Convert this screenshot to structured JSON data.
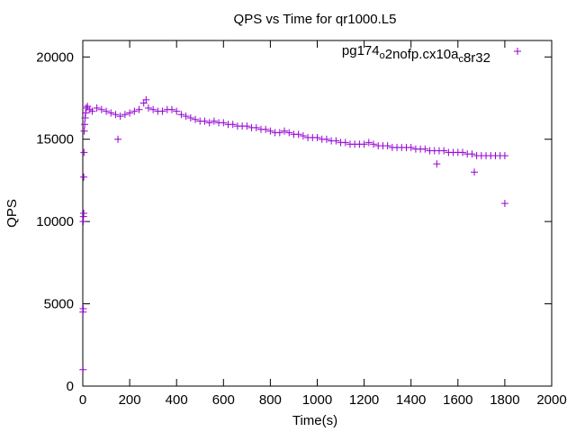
{
  "chart_data": {
    "type": "scatter",
    "title": "QPS vs Time for qr1000.L5",
    "xlabel": "Time(s)",
    "ylabel": "QPS",
    "xlim": [
      0,
      2000
    ],
    "ylim": [
      0,
      21000
    ],
    "xticks": [
      0,
      200,
      400,
      600,
      800,
      1000,
      1200,
      1400,
      1600,
      1800,
      2000
    ],
    "yticks": [
      0,
      5000,
      10000,
      15000,
      20000
    ],
    "xtick_labels": [
      "0",
      "200",
      "400",
      "600",
      "800",
      "1000",
      "1200",
      "1400",
      "1600",
      "1800",
      "2000"
    ],
    "ytick_labels": [
      "0",
      "5000",
      "10000",
      "15000",
      "20000"
    ],
    "grid": false,
    "legend_position": "top-right",
    "marker": "plus",
    "color": "#9400d3",
    "series": [
      {
        "name": "pg174_o2nofp.cx10a_c8r32",
        "name_parts": [
          {
            "text": "pg174",
            "sub": false
          },
          {
            "text": "o",
            "sub": true
          },
          {
            "text": "2nofp.cx10a",
            "sub": false
          },
          {
            "text": "c",
            "sub": true
          },
          {
            "text": "8r32",
            "sub": false
          }
        ],
        "x": [
          1,
          1,
          2,
          2,
          3,
          4,
          4,
          5,
          6,
          8,
          10,
          12,
          15,
          20,
          30,
          40,
          60,
          80,
          100,
          120,
          140,
          150,
          160,
          180,
          200,
          220,
          240,
          260,
          270,
          280,
          300,
          320,
          340,
          360,
          380,
          400,
          420,
          440,
          460,
          480,
          500,
          520,
          540,
          560,
          580,
          600,
          620,
          640,
          660,
          680,
          700,
          720,
          740,
          760,
          780,
          800,
          820,
          840,
          860,
          880,
          900,
          920,
          940,
          960,
          980,
          1000,
          1020,
          1040,
          1060,
          1080,
          1100,
          1120,
          1140,
          1160,
          1180,
          1200,
          1220,
          1240,
          1260,
          1280,
          1300,
          1320,
          1340,
          1360,
          1380,
          1400,
          1420,
          1440,
          1460,
          1480,
          1500,
          1510,
          1520,
          1540,
          1560,
          1580,
          1600,
          1620,
          1640,
          1660,
          1670,
          1680,
          1700,
          1720,
          1740,
          1760,
          1780,
          1800,
          1800
        ],
        "y": [
          1000,
          4500,
          4700,
          10000,
          10300,
          10500,
          12700,
          14200,
          15500,
          15900,
          16300,
          16600,
          16900,
          17000,
          16800,
          16700,
          16900,
          16800,
          16700,
          16600,
          16500,
          15000,
          16400,
          16500,
          16600,
          16700,
          16800,
          17200,
          17400,
          16900,
          16800,
          16700,
          16700,
          16800,
          16800,
          16700,
          16500,
          16400,
          16300,
          16200,
          16100,
          16100,
          16000,
          16100,
          16000,
          16000,
          15900,
          15900,
          15800,
          15800,
          15800,
          15700,
          15700,
          15600,
          15600,
          15500,
          15400,
          15400,
          15500,
          15400,
          15300,
          15300,
          15200,
          15100,
          15100,
          15100,
          15000,
          15000,
          14900,
          14900,
          14800,
          14800,
          14700,
          14700,
          14700,
          14700,
          14800,
          14700,
          14600,
          14600,
          14600,
          14500,
          14500,
          14500,
          14500,
          14500,
          14400,
          14400,
          14400,
          14300,
          14300,
          13500,
          14300,
          14300,
          14200,
          14200,
          14200,
          14200,
          14100,
          14100,
          13000,
          14000,
          14000,
          14000,
          14000,
          14000,
          14000,
          14000,
          11100
        ]
      }
    ]
  }
}
